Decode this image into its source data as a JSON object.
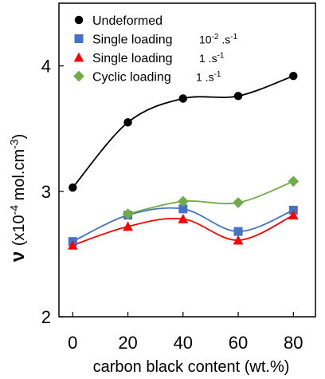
{
  "chart_data": {
    "type": "scatter",
    "xlabel": "carbon black content (wt.%)",
    "ylabel_symbol": "ν",
    "ylabel_text": "(x10-4 mol.cm-3)",
    "xlim": [
      0,
      80
    ],
    "ylim": [
      2,
      4.5
    ],
    "xticks": [
      "0",
      "20",
      "40",
      "60",
      "80"
    ],
    "yticks": [
      "2",
      "3",
      "4"
    ],
    "grid": false,
    "legend_position": "top-left",
    "series": [
      {
        "name": "Undeformed",
        "unit": "",
        "marker": "circle",
        "color": "#000000",
        "x": [
          0,
          20,
          40,
          60,
          80
        ],
        "y": [
          3.03,
          3.55,
          3.74,
          3.76,
          3.92
        ]
      },
      {
        "name": "Single loading",
        "unit": "10-2 .s-1",
        "marker": "square",
        "color": "#4472C4",
        "x": [
          0,
          20,
          40,
          60,
          80
        ],
        "y": [
          2.6,
          2.81,
          2.86,
          2.68,
          2.85
        ]
      },
      {
        "name": "Single loading",
        "unit": "1 .s-1",
        "marker": "triangle",
        "color": "#FF0000",
        "x": [
          0,
          20,
          40,
          60,
          80
        ],
        "y": [
          2.57,
          2.72,
          2.78,
          2.61,
          2.81
        ]
      },
      {
        "name": "Cyclic loading",
        "unit": "1 .s-1",
        "marker": "diamond",
        "color": "#70AD47",
        "x": [
          20,
          40,
          60,
          80
        ],
        "y": [
          2.82,
          2.92,
          2.91,
          3.08
        ]
      }
    ]
  }
}
